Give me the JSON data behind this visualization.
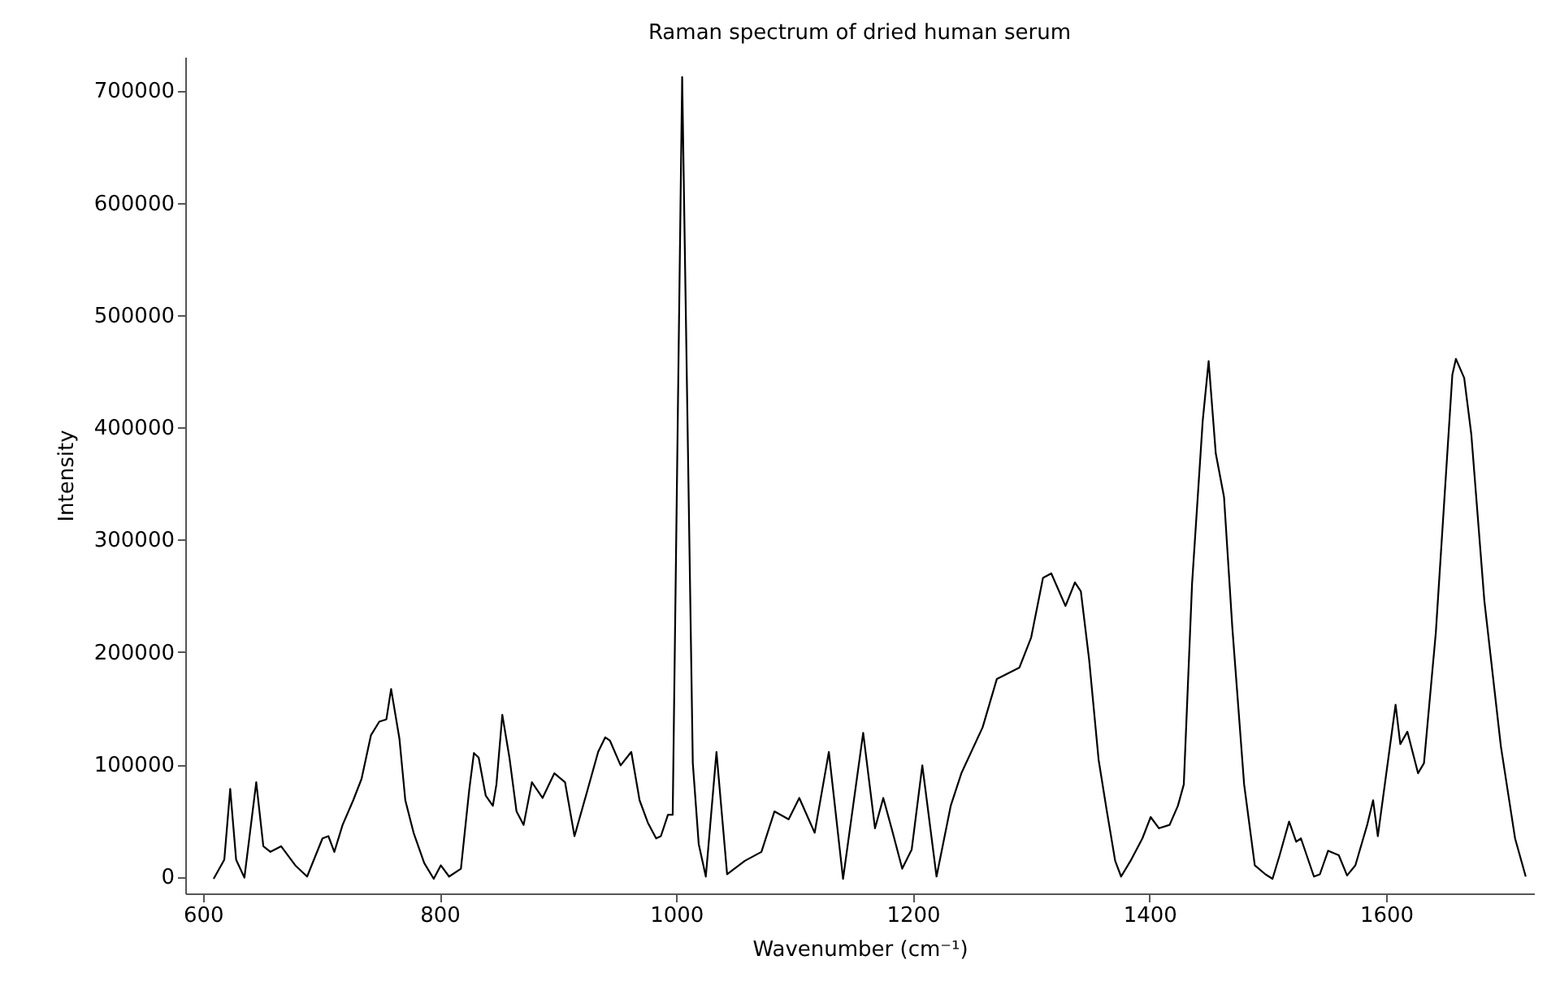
{
  "chart_data": {
    "type": "line",
    "title": "Raman spectrum of dried human serum",
    "xlabel": "Wavenumber (cm⁻¹)",
    "ylabel": "Intensity",
    "xlim": [
      585,
      1725
    ],
    "ylim": [
      -15000,
      730000
    ],
    "xticks": [
      600,
      800,
      1000,
      1200,
      1400,
      1600
    ],
    "yticks": [
      0,
      100000,
      200000,
      300000,
      400000,
      500000,
      600000,
      700000
    ],
    "grid": false,
    "marker": "none",
    "line_style": "solid",
    "series": [
      {
        "color": "#000000",
        "x": [
          609,
          618,
          623,
          628,
          635,
          645,
          651,
          657,
          666,
          678,
          688,
          701,
          706,
          711,
          718,
          727,
          734,
          742,
          749,
          755,
          759,
          766,
          771,
          778,
          787,
          795,
          801,
          808,
          818,
          825,
          829,
          833,
          839,
          845,
          848,
          853,
          859,
          865,
          871,
          878,
          887,
          897,
          906,
          914,
          925,
          934,
          940,
          944,
          953,
          962,
          969,
          976,
          983,
          987,
          993,
          997,
          1005,
          1014,
          1019,
          1025,
          1034,
          1043,
          1058,
          1072,
          1083,
          1095,
          1104,
          1117,
          1129,
          1141,
          1158,
          1168,
          1175,
          1182,
          1191,
          1199,
          1208,
          1220,
          1232,
          1241,
          1259,
          1271,
          1290,
          1300,
          1310,
          1317,
          1329,
          1337,
          1342,
          1349,
          1357,
          1364,
          1371,
          1376,
          1384,
          1394,
          1401,
          1408,
          1417,
          1424,
          1429,
          1436,
          1445,
          1450,
          1456,
          1463,
          1470,
          1480,
          1489,
          1498,
          1504,
          1510,
          1518,
          1524,
          1528,
          1539,
          1544,
          1551,
          1560,
          1567,
          1574,
          1584,
          1589,
          1593,
          1608,
          1612,
          1618,
          1627,
          1632,
          1642,
          1656,
          1659,
          1666,
          1672,
          1683,
          1697,
          1709,
          1718
        ],
        "values": [
          -2000,
          15000,
          78000,
          15000,
          -1000,
          84000,
          27000,
          22000,
          27000,
          10000,
          0,
          34000,
          36000,
          22000,
          46000,
          68000,
          87000,
          126000,
          138000,
          140000,
          167000,
          123000,
          68000,
          39000,
          12000,
          -2000,
          10000,
          0,
          7000,
          77000,
          110000,
          106000,
          72000,
          63000,
          82000,
          144000,
          106000,
          58000,
          46000,
          84000,
          70000,
          92000,
          84000,
          36000,
          77000,
          111000,
          124000,
          121000,
          99000,
          111000,
          68000,
          48000,
          34000,
          36000,
          55000,
          55000,
          712000,
          101000,
          29000,
          0,
          111000,
          2000,
          14000,
          22000,
          58000,
          51000,
          70000,
          39000,
          111000,
          -2000,
          128000,
          43000,
          70000,
          43000,
          7000,
          24000,
          99000,
          0,
          63000,
          92000,
          133000,
          176000,
          186000,
          213000,
          266000,
          270000,
          241000,
          262000,
          254000,
          193000,
          104000,
          58000,
          14000,
          0,
          14000,
          34000,
          53000,
          43000,
          46000,
          63000,
          82000,
          261000,
          406000,
          459000,
          377000,
          338000,
          222000,
          82000,
          10000,
          2000,
          -2000,
          19000,
          49000,
          31000,
          34000,
          0,
          2000,
          23000,
          19000,
          1000,
          10000,
          46000,
          68000,
          36000,
          153000,
          118000,
          129000,
          92000,
          101000,
          217000,
          447000,
          461000,
          444000,
          394000,
          246000,
          116000,
          34000,
          0
        ]
      }
    ]
  }
}
